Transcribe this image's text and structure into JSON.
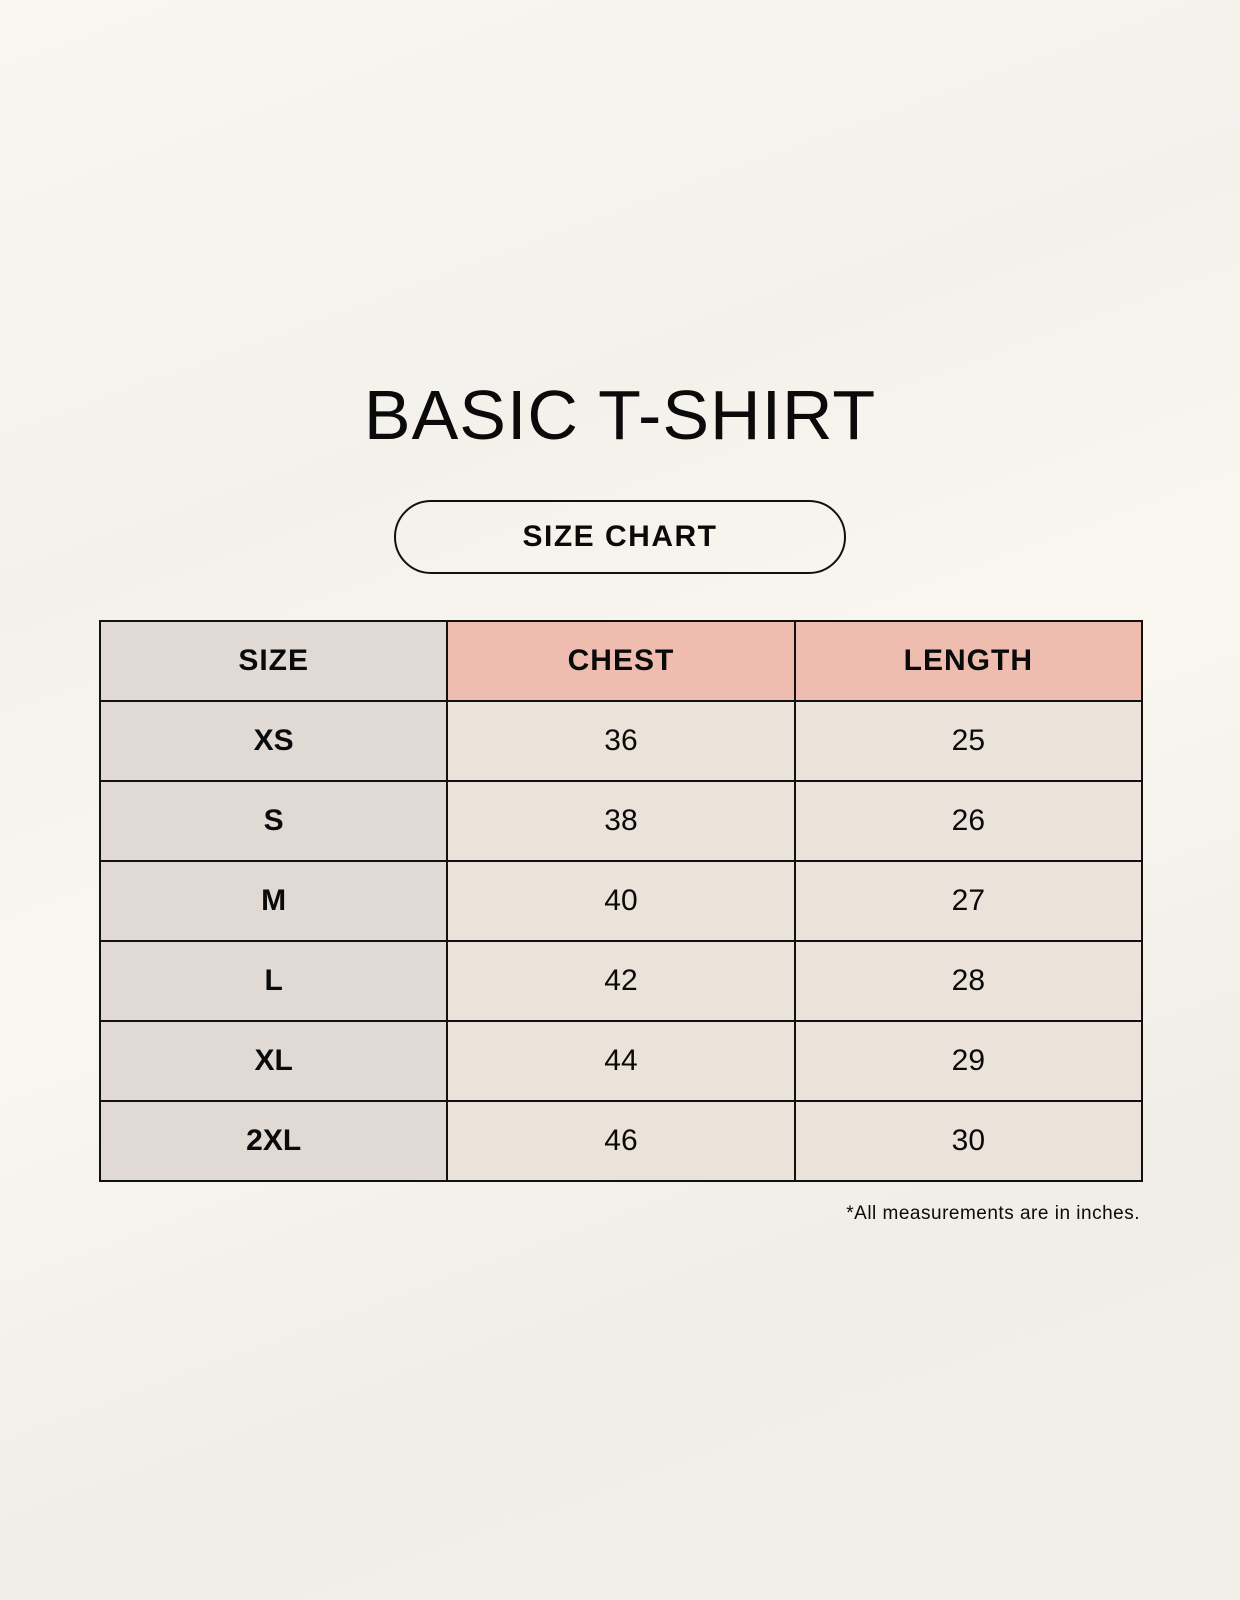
{
  "title": "BASIC T-SHIRT",
  "subtitle": "SIZE CHART",
  "table": {
    "headers": [
      "SIZE",
      "CHEST",
      "LENGTH"
    ],
    "rows": [
      [
        "XS",
        "36",
        "25"
      ],
      [
        "S",
        "38",
        "26"
      ],
      [
        "M",
        "40",
        "27"
      ],
      [
        "L",
        "42",
        "28"
      ],
      [
        "XL",
        "44",
        "29"
      ],
      [
        "2XL",
        "46",
        "30"
      ]
    ]
  },
  "note": "*All measurements are in inches.",
  "colors": {
    "size_column": "#e1d9d4",
    "header_accent": "#eebdb0",
    "cell": "#ebe3d9"
  }
}
